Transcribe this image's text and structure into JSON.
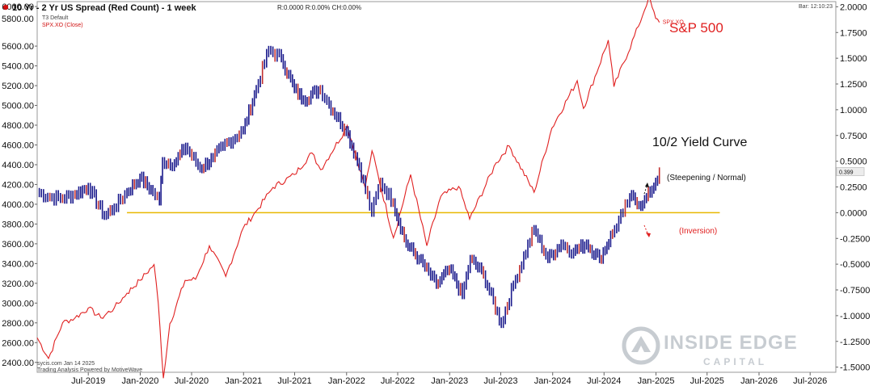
{
  "header": {
    "title": "10 Yr - 2 Yr US Spread (Red Count) - 1 week",
    "readout": "R:0.0000  R:0.00%  CH:0.00%",
    "sub_line1": "T3 Default",
    "sub_line2": "SPX.XO (Close)",
    "bar_info": "Bar: 12:10:23",
    "left_cut_label": "5800.00"
  },
  "footer": {
    "line1": "sycis.com Jan 14 2025",
    "line2": "Trading Analysis Powered by MotiveWave"
  },
  "logo": {
    "line1": "INSIDE EDGE",
    "line2": "CAPITAL"
  },
  "chart_data": {
    "type": "line",
    "x_ticks": [
      "Jul-2019",
      "Jan-2020",
      "Jul-2020",
      "Jan-2021",
      "Jul-2021",
      "Jan-2022",
      "Jul-2022",
      "Jan-2023",
      "Jul-2023",
      "Jan-2024",
      "Jul-2024",
      "Jan-2025",
      "Jul-2025",
      "Jan-2026",
      "Jul-2026"
    ],
    "y_left": {
      "ticks": [
        "6000.00",
        "5600.00",
        "5400.00",
        "5200.00",
        "5000.00",
        "4800.00",
        "4600.00",
        "4400.00",
        "4200.00",
        "4000.00",
        "3800.00",
        "3600.00",
        "3400.00",
        "3200.00",
        "3000.00",
        "2800.00",
        "2600.00",
        "2400.00"
      ],
      "range": [
        2300,
        6050
      ]
    },
    "y_right": {
      "ticks": [
        "2.0000",
        "1.7500",
        "1.5000",
        "1.2500",
        "1.0000",
        "0.7500",
        "0.5000",
        "0.2500",
        "0.0000",
        "-0.2500",
        "-0.5000",
        "-0.7500",
        "-1.0000",
        "-1.2500",
        "-1.5000"
      ],
      "range": [
        -1.55,
        2.05
      ]
    },
    "x_range": [
      "2019-01-01",
      "2026-09-30"
    ],
    "spx_series": {
      "name": "SPX.XO",
      "color": "#e02020",
      "points": [
        [
          "2019-01-01",
          2650
        ],
        [
          "2019-02-10",
          2440
        ],
        [
          "2019-04-01",
          2800
        ],
        [
          "2019-05-15",
          2850
        ],
        [
          "2019-07-01",
          2950
        ],
        [
          "2019-08-15",
          2850
        ],
        [
          "2019-10-01",
          2950
        ],
        [
          "2019-11-15",
          3100
        ],
        [
          "2019-12-31",
          3230
        ],
        [
          "2020-02-19",
          3390
        ],
        [
          "2020-03-05",
          3000
        ],
        [
          "2020-03-23",
          2240
        ],
        [
          "2020-04-15",
          2790
        ],
        [
          "2020-06-08",
          3230
        ],
        [
          "2020-07-15",
          3240
        ],
        [
          "2020-09-02",
          3580
        ],
        [
          "2020-10-30",
          3270
        ],
        [
          "2020-12-31",
          3760
        ],
        [
          "2021-02-15",
          3930
        ],
        [
          "2021-04-15",
          4170
        ],
        [
          "2021-06-30",
          4300
        ],
        [
          "2021-08-31",
          4520
        ],
        [
          "2021-10-01",
          4350
        ],
        [
          "2021-12-31",
          4770
        ],
        [
          "2022-01-03",
          4796
        ],
        [
          "2022-03-08",
          4170
        ],
        [
          "2022-04-01",
          4540
        ],
        [
          "2022-06-16",
          3660
        ],
        [
          "2022-08-16",
          4300
        ],
        [
          "2022-10-12",
          3580
        ],
        [
          "2022-12-01",
          4080
        ],
        [
          "2023-02-02",
          4180
        ],
        [
          "2023-03-13",
          3850
        ],
        [
          "2023-06-15",
          4420
        ],
        [
          "2023-07-31",
          4590
        ],
        [
          "2023-10-27",
          4120
        ],
        [
          "2023-12-29",
          4770
        ],
        [
          "2024-03-28",
          5250
        ],
        [
          "2024-04-19",
          4970
        ],
        [
          "2024-07-16",
          5660
        ],
        [
          "2024-08-05",
          5190
        ],
        [
          "2024-10-31",
          5800
        ],
        [
          "2024-12-06",
          6090
        ],
        [
          "2024-12-31",
          5880
        ],
        [
          "2025-01-13",
          5840
        ]
      ],
      "last_label": "SPX.XO",
      "annotation": "S&P 500"
    },
    "spread_series": {
      "name": "10 Yr - 2 Yr US Spread",
      "color": "#1a1a8c",
      "up_color": "#c23030",
      "points": [
        [
          "2019-01-01",
          0.2
        ],
        [
          "2019-02-15",
          0.15
        ],
        [
          "2019-04-01",
          0.14
        ],
        [
          "2019-05-15",
          0.18
        ],
        [
          "2019-07-01",
          0.25
        ],
        [
          "2019-08-27",
          -0.03
        ],
        [
          "2019-10-01",
          0.05
        ],
        [
          "2019-11-15",
          0.2
        ],
        [
          "2019-12-31",
          0.34
        ],
        [
          "2020-02-15",
          0.2
        ],
        [
          "2020-03-09",
          0.11
        ],
        [
          "2020-03-20",
          0.5
        ],
        [
          "2020-05-01",
          0.48
        ],
        [
          "2020-06-10",
          0.64
        ],
        [
          "2020-07-31",
          0.43
        ],
        [
          "2020-09-15",
          0.53
        ],
        [
          "2020-10-20",
          0.64
        ],
        [
          "2020-12-31",
          0.8
        ],
        [
          "2021-02-15",
          1.2
        ],
        [
          "2021-03-31",
          1.58
        ],
        [
          "2021-05-15",
          1.5
        ],
        [
          "2021-06-30",
          1.2
        ],
        [
          "2021-08-01",
          1.1
        ],
        [
          "2021-09-30",
          1.2
        ],
        [
          "2021-10-31",
          1.05
        ],
        [
          "2021-12-31",
          0.8
        ],
        [
          "2022-02-15",
          0.45
        ],
        [
          "2022-03-31",
          0.0
        ],
        [
          "2022-05-01",
          0.3
        ],
        [
          "2022-06-15",
          0.1
        ],
        [
          "2022-07-31",
          -0.3
        ],
        [
          "2022-09-15",
          -0.45
        ],
        [
          "2022-11-15",
          -0.7
        ],
        [
          "2022-12-31",
          -0.55
        ],
        [
          "2023-02-15",
          -0.8
        ],
        [
          "2023-03-15",
          -0.45
        ],
        [
          "2023-05-01",
          -0.6
        ],
        [
          "2023-07-03",
          -1.08
        ],
        [
          "2023-08-15",
          -0.7
        ],
        [
          "2023-10-27",
          -0.16
        ],
        [
          "2023-12-15",
          -0.45
        ],
        [
          "2024-01-31",
          -0.3
        ],
        [
          "2024-03-15",
          -0.38
        ],
        [
          "2024-04-30",
          -0.3
        ],
        [
          "2024-06-15",
          -0.45
        ],
        [
          "2024-07-31",
          -0.2
        ],
        [
          "2024-09-06",
          0.0
        ],
        [
          "2024-09-30",
          0.15
        ],
        [
          "2024-11-15",
          0.08
        ],
        [
          "2024-12-31",
          0.3
        ],
        [
          "2025-01-13",
          0.4
        ]
      ],
      "last_value": "0.399",
      "annotation": "10/2 Yield Curve"
    },
    "zero_line": {
      "value": 0.0,
      "from": "2019-11-15",
      "to": "2025-08-15",
      "color": "#e8b800"
    },
    "annotations": {
      "steepening": "(Steepening / Normal)",
      "inversion": "(Inversion)"
    }
  }
}
